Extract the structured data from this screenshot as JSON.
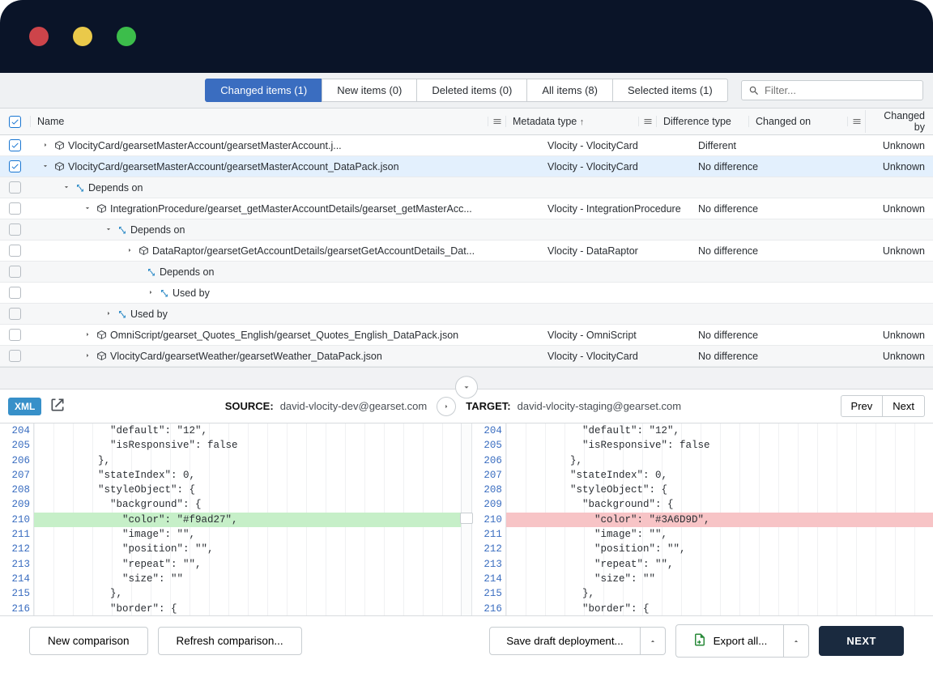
{
  "window": {
    "dot_colors": {
      "red": "#cd444a",
      "yellow": "#eac94a",
      "green": "#3cbd4b"
    }
  },
  "tabs": {
    "changed": "Changed items (1)",
    "new": "New items (0)",
    "deleted": "Deleted items (0)",
    "all": "All items (8)",
    "selected": "Selected items (1)"
  },
  "filter": {
    "placeholder": "Filter..."
  },
  "columns": {
    "name": "Name",
    "metadata_type": "Metadata type",
    "difference_type": "Difference type",
    "changed_on": "Changed on",
    "changed_by": "Changed by"
  },
  "rows": [
    {
      "indent": 1,
      "chev": "right",
      "icon": "cube",
      "name": "VlocityCard/gearsetMasterAccount/gearsetMasterAccount.j...",
      "meta": "Vlocity - VlocityCard",
      "diff": "Different",
      "by": "Unknown",
      "checked": true
    },
    {
      "indent": 1,
      "chev": "down",
      "icon": "cube",
      "name": "VlocityCard/gearsetMasterAccount/gearsetMasterAccount_DataPack.json",
      "meta": "Vlocity - VlocityCard",
      "diff": "No difference",
      "by": "Unknown",
      "checked": true,
      "selected": true
    },
    {
      "indent": 2,
      "chev": "down",
      "icon": "arrow",
      "name": "Depends on",
      "meta": "",
      "diff": "",
      "by": "",
      "alt": true
    },
    {
      "indent": 3,
      "chev": "down",
      "icon": "cube",
      "name": "IntegrationProcedure/gearset_getMasterAccountDetails/gearset_getMasterAcc...",
      "meta": "Vlocity - IntegrationProcedure",
      "diff": "No difference",
      "by": "Unknown"
    },
    {
      "indent": 4,
      "chev": "down",
      "icon": "arrow",
      "name": "Depends on",
      "meta": "",
      "diff": "",
      "by": "",
      "alt": true
    },
    {
      "indent": 5,
      "chev": "right",
      "icon": "cube",
      "name": "DataRaptor/gearsetGetAccountDetails/gearsetGetAccountDetails_Dat...",
      "meta": "Vlocity - DataRaptor",
      "diff": "No difference",
      "by": "Unknown"
    },
    {
      "indent": 6,
      "chev": "none",
      "icon": "arrow",
      "name": "Depends on",
      "meta": "",
      "diff": "",
      "by": "",
      "alt": true
    },
    {
      "indent": 6,
      "chev": "right",
      "icon": "arrow",
      "name": "Used by",
      "meta": "",
      "diff": "",
      "by": ""
    },
    {
      "indent": 4,
      "chev": "right",
      "icon": "arrow",
      "name": "Used by",
      "meta": "",
      "diff": "",
      "by": "",
      "alt": true
    },
    {
      "indent": 3,
      "chev": "right",
      "icon": "cube",
      "name": "OmniScript/gearset_Quotes_English/gearset_Quotes_English_DataPack.json",
      "meta": "Vlocity - OmniScript",
      "diff": "No difference",
      "by": "Unknown"
    },
    {
      "indent": 3,
      "chev": "right",
      "icon": "cube",
      "name": "VlocityCard/gearsetWeather/gearsetWeather_DataPack.json",
      "meta": "Vlocity - VlocityCard",
      "diff": "No difference",
      "by": "Unknown",
      "alt": true
    }
  ],
  "diff": {
    "xml_label": "XML",
    "source_label": "SOURCE:",
    "source_value": "david-vlocity-dev@gearset.com",
    "target_label": "TARGET:",
    "target_value": "david-vlocity-staging@gearset.com",
    "prev": "Prev",
    "next": "Next",
    "source_lines": [
      {
        "n": 204,
        "t": "            \"default\": \"12\","
      },
      {
        "n": 205,
        "t": "            \"isResponsive\": false"
      },
      {
        "n": 206,
        "t": "          },"
      },
      {
        "n": 207,
        "t": "          \"stateIndex\": 0,"
      },
      {
        "n": 208,
        "t": "          \"styleObject\": {"
      },
      {
        "n": 209,
        "t": "            \"background\": {"
      },
      {
        "n": 210,
        "t": "              \"color\": \"#f9ad27\",",
        "cls": "added"
      },
      {
        "n": 211,
        "t": "              \"image\": \"\","
      },
      {
        "n": 212,
        "t": "              \"position\": \"\","
      },
      {
        "n": 213,
        "t": "              \"repeat\": \"\","
      },
      {
        "n": 214,
        "t": "              \"size\": \"\""
      },
      {
        "n": 215,
        "t": "            },"
      },
      {
        "n": 216,
        "t": "            \"border\": {"
      }
    ],
    "target_lines": [
      {
        "n": 204,
        "t": "            \"default\": \"12\","
      },
      {
        "n": 205,
        "t": "            \"isResponsive\": false"
      },
      {
        "n": 206,
        "t": "          },"
      },
      {
        "n": 207,
        "t": "          \"stateIndex\": 0,"
      },
      {
        "n": 208,
        "t": "          \"styleObject\": {"
      },
      {
        "n": 209,
        "t": "            \"background\": {"
      },
      {
        "n": 210,
        "t": "              \"color\": \"#3A6D9D\",",
        "cls": "removed"
      },
      {
        "n": 211,
        "t": "              \"image\": \"\","
      },
      {
        "n": 212,
        "t": "              \"position\": \"\","
      },
      {
        "n": 213,
        "t": "              \"repeat\": \"\","
      },
      {
        "n": 214,
        "t": "              \"size\": \"\""
      },
      {
        "n": 215,
        "t": "            },"
      },
      {
        "n": 216,
        "t": "            \"border\": {"
      }
    ]
  },
  "footer": {
    "new_comparison": "New comparison",
    "refresh_comparison": "Refresh comparison...",
    "save_draft": "Save draft deployment...",
    "export_all": "Export all...",
    "next": "NEXT"
  },
  "colors": {
    "accent_blue": "#3a6dc0",
    "highlight_row": "#e3f0fd",
    "diff_added": "#c6efc8",
    "diff_removed": "#f7c4c6"
  }
}
